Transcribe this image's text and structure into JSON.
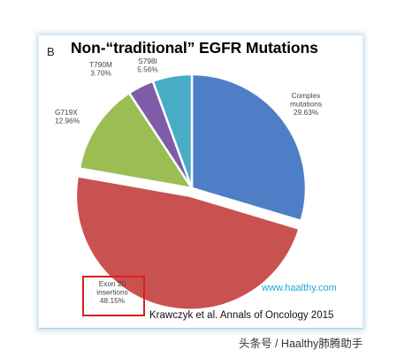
{
  "figure": {
    "letter": "B",
    "citation": "Krawczyk et al. Annals of Oncology 2015",
    "watermark": "www.haalthy.com"
  },
  "footer": {
    "credit": "头条号 / Haalthy肺腾助手"
  },
  "colors": {
    "highlight": "#d91f1f",
    "watermark": "#1aa9d6"
  },
  "chart_data": {
    "type": "pie",
    "title": "Non-“traditional” EGFR Mutations",
    "slices": [
      {
        "name": "Complex mutations",
        "label_lines": [
          "Complex",
          "mutations"
        ],
        "value": 29.63,
        "value_label": "29.63%",
        "color": "#4e7fc6",
        "exploded": false
      },
      {
        "name": "Exon 20 insertions",
        "label_lines": [
          "Exon 20",
          "insertions"
        ],
        "value": 48.15,
        "value_label": "48.15%",
        "color": "#c9514f",
        "exploded": true
      },
      {
        "name": "G719X",
        "label_lines": [
          "G719X"
        ],
        "value": 12.96,
        "value_label": "12.96%",
        "color": "#9bbe53",
        "exploded": false
      },
      {
        "name": "T790M",
        "label_lines": [
          "T790M"
        ],
        "value": 3.7,
        "value_label": "3.70%",
        "color": "#7f5ba8",
        "exploded": false
      },
      {
        "name": "S798I",
        "label_lines": [
          "S798I"
        ],
        "value": 5.56,
        "value_label": "5.56%",
        "color": "#48acc6",
        "exploded": false
      }
    ],
    "start_angle_deg": 0,
    "direction": "clockwise",
    "highlighted_slice": "Exon 20 insertions",
    "legend": "none"
  }
}
